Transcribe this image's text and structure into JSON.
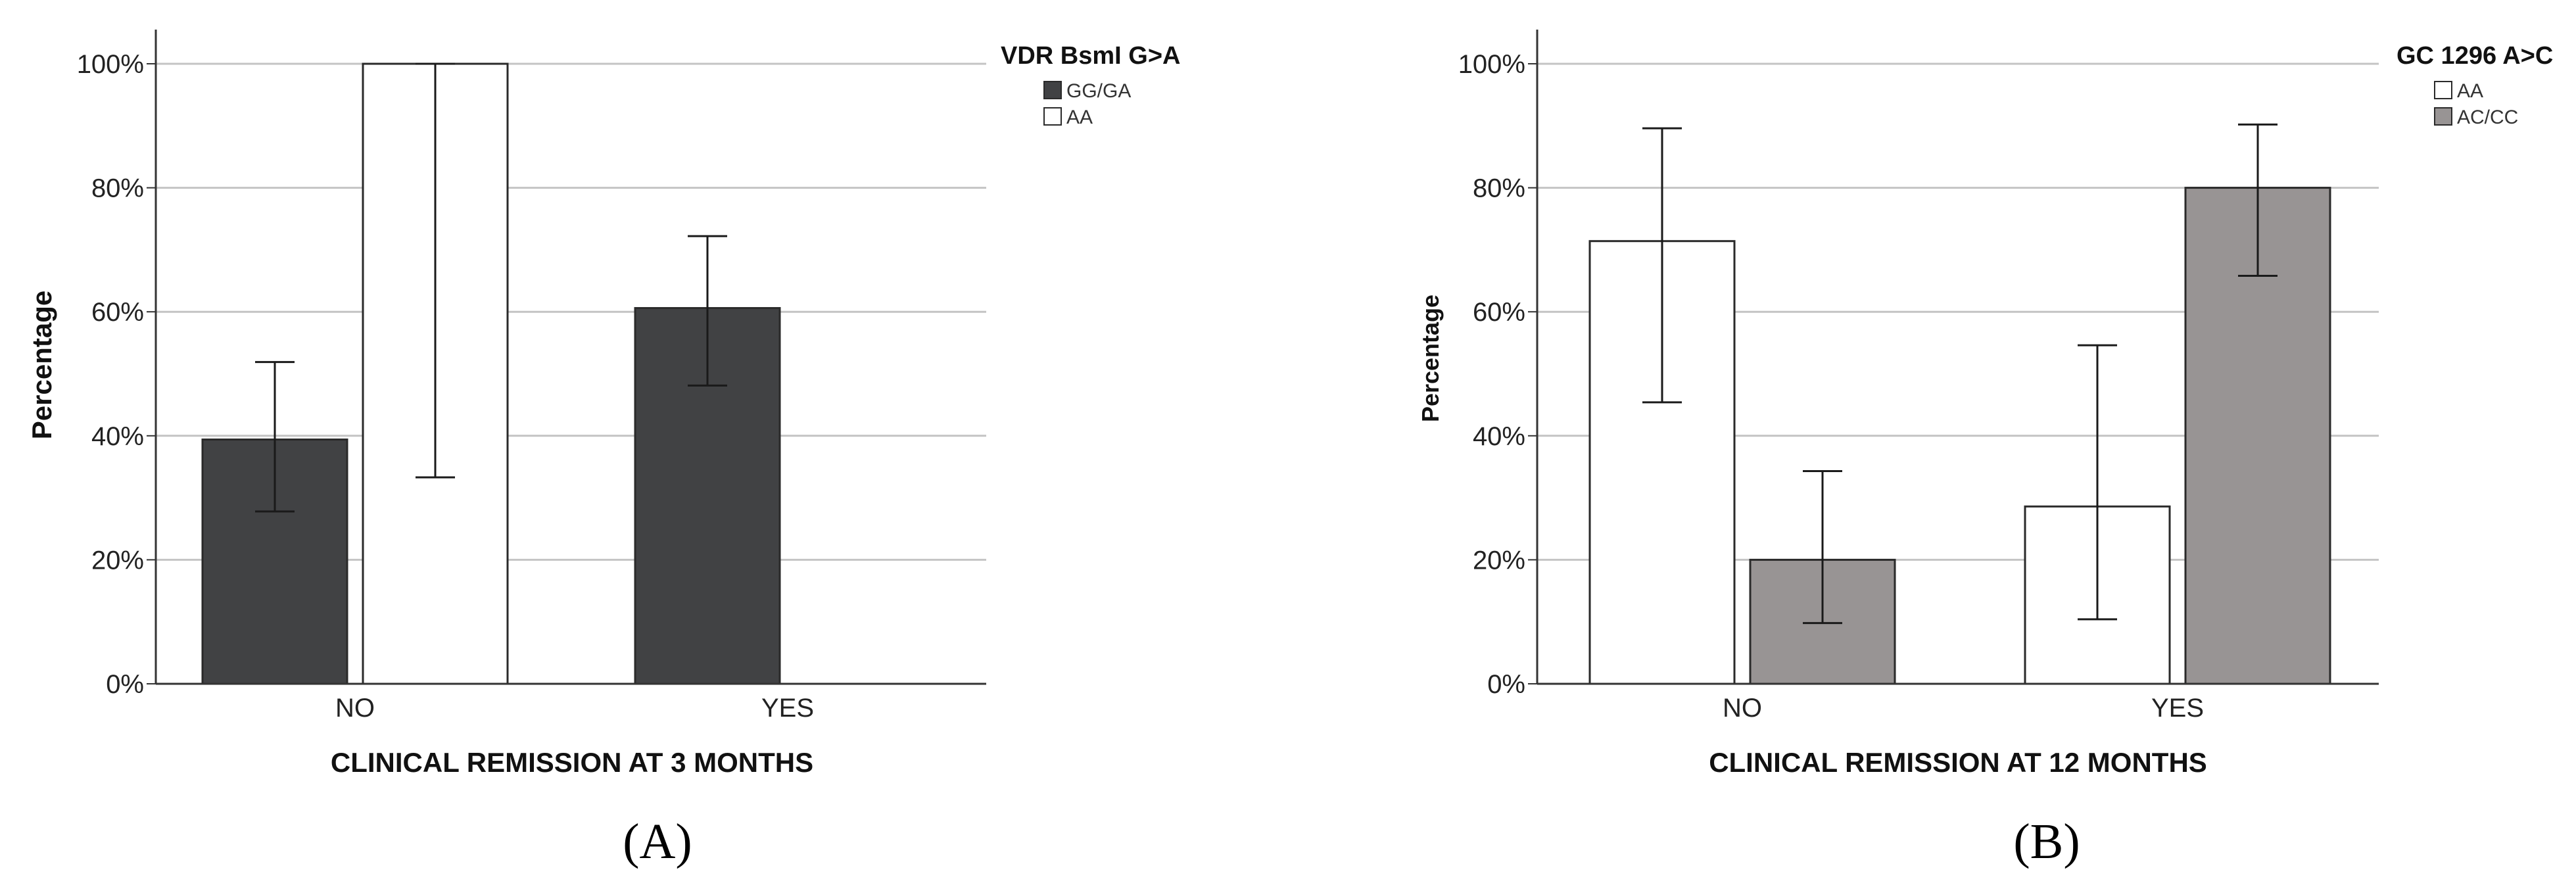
{
  "chart_data": [
    {
      "type": "bar",
      "panel_label": "(A)",
      "xlabel": "CLINICAL REMISSION AT 3 MONTHS",
      "ylabel": "Percentage",
      "categories": [
        "NO",
        "YES"
      ],
      "ylim": [
        0,
        100
      ],
      "yticks": [
        "0%",
        "20%",
        "40%",
        "60%",
        "80%",
        "100%"
      ],
      "grid": true,
      "legend": {
        "title": "VDR BsmI G>A",
        "placement": "right"
      },
      "series": [
        {
          "name": "GG/GA",
          "color": "#414244",
          "values": [
            39.4,
            60.6
          ],
          "error_low": [
            27.8,
            48.1
          ],
          "error_high": [
            51.9,
            72.2
          ]
        },
        {
          "name": "AA",
          "color": "#ffffff",
          "values": [
            100,
            0
          ],
          "error_low": [
            33.3,
            null
          ],
          "error_high": [
            100,
            null
          ]
        }
      ]
    },
    {
      "type": "bar",
      "panel_label": "(B)",
      "xlabel": "CLINICAL REMISSION AT 12 MONTHS",
      "ylabel": "Percentage",
      "categories": [
        "NO",
        "YES"
      ],
      "ylim": [
        0,
        100
      ],
      "yticks": [
        "0%",
        "20%",
        "40%",
        "60%",
        "80%",
        "100%"
      ],
      "grid": true,
      "legend": {
        "title": "GC 1296 A>C",
        "placement": "right"
      },
      "series": [
        {
          "name": "AA",
          "color": "#ffffff",
          "values": [
            71.4,
            28.6
          ],
          "error_low": [
            45.4,
            10.4
          ],
          "error_high": [
            89.6,
            54.6
          ]
        },
        {
          "name": "AC/CC",
          "color": "#989494",
          "values": [
            20,
            80
          ],
          "error_low": [
            9.8,
            65.8
          ],
          "error_high": [
            34.3,
            90.2
          ]
        }
      ]
    }
  ]
}
